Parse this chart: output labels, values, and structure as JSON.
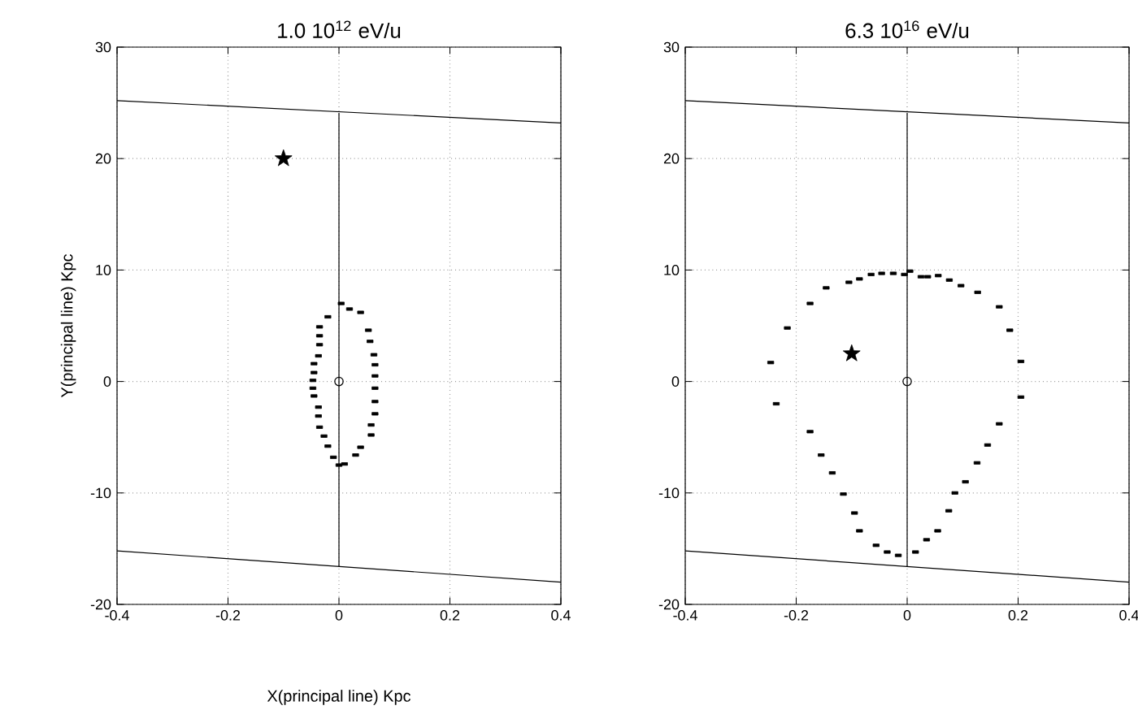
{
  "chart_data": [
    {
      "type": "scatter",
      "title": "1.0 10$^{12}$ eV/u",
      "xlabel": "X(principal line) Kpc",
      "ylabel": "Y(principal line) Kpc",
      "xlim": [
        -0.4,
        0.4
      ],
      "ylim": [
        -20,
        30
      ],
      "xticks": [
        -0.4,
        -0.2,
        0,
        0.2,
        0.4
      ],
      "yticks": [
        -20,
        -10,
        0,
        10,
        20,
        30
      ],
      "grid": true,
      "series": [
        {
          "marker": "square",
          "color": "#000000",
          "x": [
            -0.02,
            0.004,
            0.019,
            0.039,
            0.053,
            0.056,
            0.063,
            0.065,
            0.065,
            0.065,
            0.065,
            0.065,
            0.058,
            0.058,
            0.039,
            0.03,
            0.01,
            0.0,
            -0.01,
            -0.02,
            -0.027,
            -0.035,
            -0.037,
            -0.037,
            -0.045,
            -0.047,
            -0.047,
            -0.045,
            -0.045,
            -0.037,
            -0.035,
            -0.035,
            -0.035
          ],
          "values": [
            5.8,
            7.0,
            6.5,
            6.2,
            4.6,
            3.6,
            2.4,
            1.5,
            0.5,
            -0.6,
            -1.8,
            -2.9,
            -3.9,
            -4.8,
            -5.9,
            -6.6,
            -7.4,
            -7.5,
            -6.8,
            -5.8,
            -4.9,
            -4.1,
            -3.1,
            -2.3,
            -1.3,
            -0.6,
            0.1,
            0.8,
            1.6,
            2.3,
            3.3,
            4.1,
            4.9
          ]
        },
        {
          "type": "line",
          "marker": "none",
          "color": "#000000",
          "x": [
            -0.4,
            0.4
          ],
          "values": [
            25.2,
            23.2
          ]
        },
        {
          "type": "line",
          "marker": "none",
          "color": "#000000",
          "x": [
            -0.4,
            0.4
          ],
          "values": [
            -15.2,
            -18.0
          ]
        },
        {
          "type": "line",
          "marker": "none",
          "color": "#000000",
          "x": [
            0,
            0
          ],
          "values": [
            -16.6,
            24.1
          ]
        },
        {
          "type": "scatter",
          "marker": "circle",
          "color": "#000000",
          "x": [
            0
          ],
          "values": [
            0
          ]
        },
        {
          "type": "scatter",
          "marker": "star",
          "color": "#000000",
          "x": [
            -0.1
          ],
          "values": [
            20
          ]
        }
      ]
    },
    {
      "type": "scatter",
      "title": "6.3 10$^{16}$ eV/u",
      "xlim": [
        -0.4,
        0.4
      ],
      "ylim": [
        -20,
        30
      ],
      "xticks": [
        -0.4,
        -0.2,
        0,
        0.2,
        0.4
      ],
      "yticks": [
        -20,
        -10,
        0,
        10,
        20,
        30
      ],
      "grid": true,
      "series": [
        {
          "marker": "square",
          "color": "#000000",
          "x": [
            -0.246,
            -0.236,
            -0.216,
            -0.175,
            -0.146,
            -0.105,
            -0.086,
            -0.065,
            -0.046,
            -0.025,
            -0.005,
            0.005,
            0.025,
            0.037,
            0.056,
            0.076,
            0.097,
            0.127,
            0.166,
            0.185,
            0.205,
            0.205,
            0.166,
            0.145,
            0.126,
            0.105,
            0.086,
            0.075,
            0.055,
            0.035,
            0.015,
            -0.016,
            -0.036,
            -0.056,
            -0.086,
            -0.095,
            -0.115,
            -0.135,
            -0.155,
            -0.175
          ],
          "values": [
            1.7,
            -2.0,
            4.8,
            7.0,
            8.4,
            8.9,
            9.2,
            9.6,
            9.7,
            9.7,
            9.6,
            9.9,
            9.4,
            9.4,
            9.5,
            9.1,
            8.6,
            8.0,
            6.7,
            4.6,
            1.8,
            -1.4,
            -3.8,
            -5.7,
            -7.3,
            -9.0,
            -10.0,
            -11.6,
            -13.4,
            -14.2,
            -15.3,
            -15.6,
            -15.3,
            -14.7,
            -13.4,
            -11.8,
            -10.1,
            -8.2,
            -6.6,
            -4.5
          ]
        },
        {
          "type": "line",
          "marker": "none",
          "color": "#000000",
          "x": [
            -0.4,
            0.4
          ],
          "values": [
            25.2,
            23.2
          ]
        },
        {
          "type": "line",
          "marker": "none",
          "color": "#000000",
          "x": [
            -0.4,
            0.4
          ],
          "values": [
            -15.2,
            -18.0
          ]
        },
        {
          "type": "line",
          "marker": "none",
          "color": "#000000",
          "x": [
            0,
            0
          ],
          "values": [
            -16.6,
            24.1
          ]
        },
        {
          "type": "scatter",
          "marker": "circle",
          "color": "#000000",
          "x": [
            0
          ],
          "values": [
            0
          ]
        },
        {
          "type": "scatter",
          "marker": "star",
          "color": "#000000",
          "x": [
            -0.1
          ],
          "values": [
            2.5
          ]
        }
      ]
    }
  ]
}
